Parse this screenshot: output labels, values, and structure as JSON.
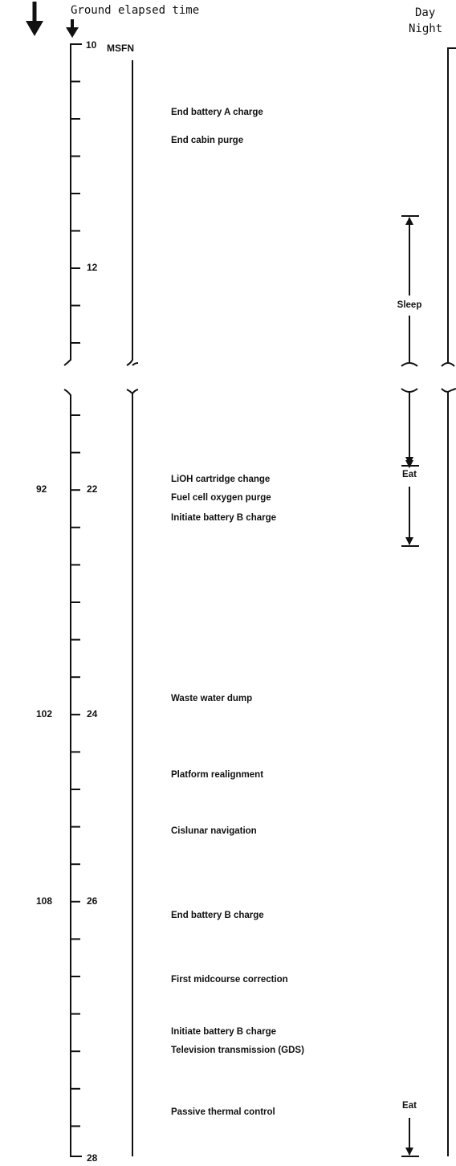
{
  "header": {
    "axis_title": "Ground elapsed time",
    "day": "Day",
    "night": "Night"
  },
  "scale": {
    "top_label": "10",
    "station": "MSFN",
    "labels": [
      {
        "inner": "12"
      },
      {
        "outer": "92",
        "inner": "22"
      },
      {
        "outer": "102",
        "inner": "24"
      },
      {
        "outer": "108",
        "inner": "26"
      },
      {
        "inner": "28"
      }
    ]
  },
  "events": [
    "End battery A charge",
    "End cabin purge",
    "LiOH cartridge change",
    "Fuel cell oxygen purge",
    "Initiate battery B charge",
    "Waste water dump",
    "Platform realignment",
    "Cislunar navigation",
    "End battery B charge",
    "First midcourse correction",
    "Initiate battery B charge",
    "Television transmission (GDS)",
    "Passive thermal control"
  ],
  "crew": [
    "Sleep",
    "Eat",
    "Eat"
  ]
}
